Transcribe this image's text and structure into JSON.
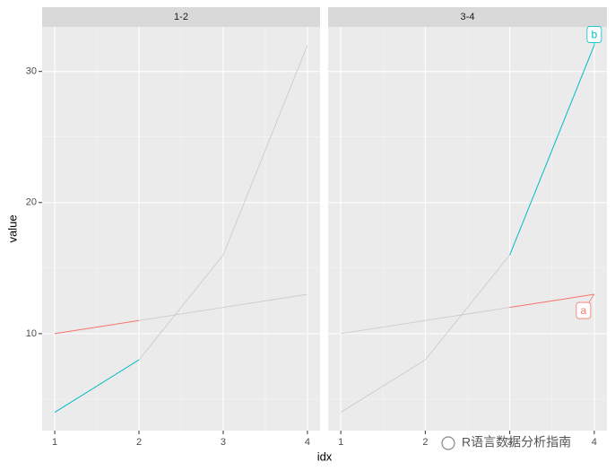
{
  "chart_data": {
    "type": "line",
    "x_label": "idx",
    "y_label": "value",
    "x": [
      1,
      2,
      3,
      4
    ],
    "series": [
      {
        "name": "a",
        "color": "#F8766D",
        "values": [
          10,
          11,
          12,
          13
        ]
      },
      {
        "name": "b",
        "color": "#00BFC4",
        "values": [
          4,
          8,
          16,
          32
        ]
      }
    ],
    "other_color": "#c8c8c8",
    "facets": [
      {
        "title": "1-2",
        "highlight": [
          1,
          2
        ],
        "show_labels": false
      },
      {
        "title": "3-4",
        "highlight": [
          3,
          4
        ],
        "show_labels": true
      }
    ],
    "xlim": [
      0.85,
      4.15
    ],
    "xticks": [
      1,
      2,
      3,
      4
    ],
    "ylim": [
      2.6,
      33.4
    ],
    "yticks": [
      10,
      20,
      30
    ],
    "grid": true,
    "watermark": "R语言数据分析指南"
  },
  "watermark": "R语言数据分析指南"
}
